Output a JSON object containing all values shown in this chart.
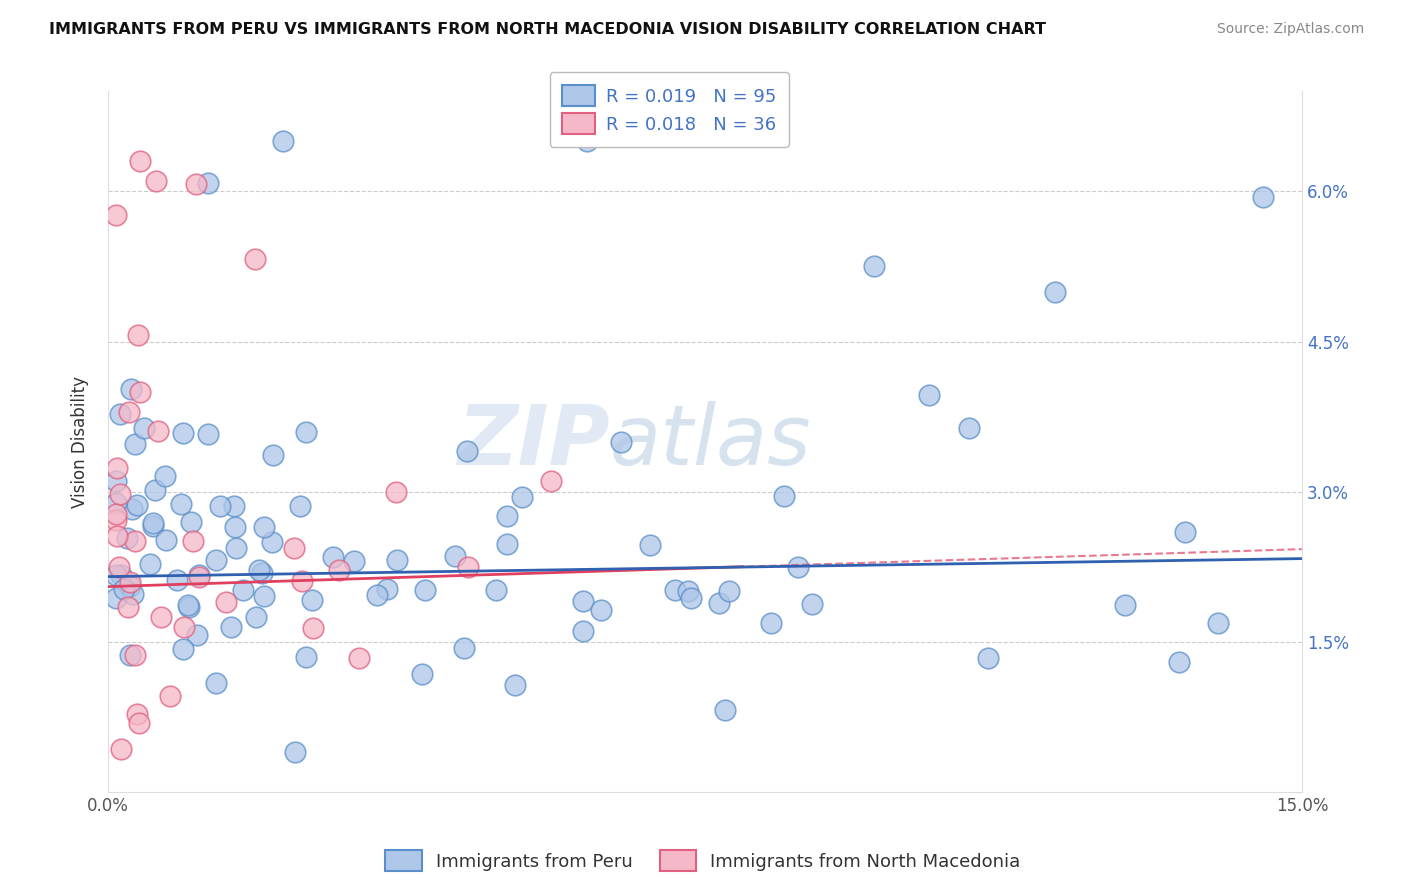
{
  "title": "IMMIGRANTS FROM PERU VS IMMIGRANTS FROM NORTH MACEDONIA VISION DISABILITY CORRELATION CHART",
  "source": "Source: ZipAtlas.com",
  "ylabel": "Vision Disability",
  "xlim": [
    0.0,
    0.15
  ],
  "ylim": [
    0.0,
    0.07
  ],
  "xtick_vals": [
    0.0,
    0.03,
    0.06,
    0.09,
    0.12,
    0.15
  ],
  "xticklabels": [
    "0.0%",
    "",
    "",
    "",
    "",
    "15.0%"
  ],
  "ytick_vals": [
    0.015,
    0.03,
    0.045,
    0.06
  ],
  "yticklabels": [
    "1.5%",
    "3.0%",
    "4.5%",
    "6.0%"
  ],
  "peru_R": "0.019",
  "peru_N": "95",
  "nmacedonia_R": "0.018",
  "nmacedonia_N": "36",
  "peru_color": "#aec6e8",
  "peru_edge_color": "#5b8fc9",
  "nmacedonia_color": "#f5b8c8",
  "nmacedonia_edge_color": "#e06080",
  "peru_trend_color": "#3060b0",
  "nmacedonia_trend_color": "#e04060",
  "legend_label_peru": "Immigrants from Peru",
  "legend_label_nmacedonia": "Immigrants from North Macedonia",
  "watermark": "ZIPatlas",
  "peru_seed": 12345,
  "nmacedonia_seed": 67890,
  "title_fontsize": 11.5,
  "source_fontsize": 10,
  "axis_label_fontsize": 12,
  "tick_fontsize": 12,
  "legend_fontsize": 13,
  "watermark_fontsize": 60
}
